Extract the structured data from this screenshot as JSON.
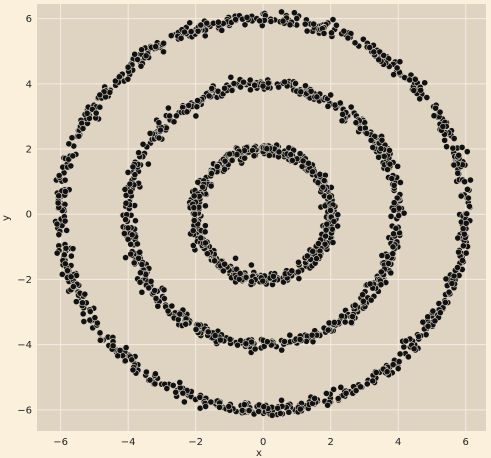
{
  "chart_data": {
    "type": "scatter",
    "title": "",
    "xlabel": "x",
    "ylabel": "y",
    "xlim": [
      -6.7,
      6.6
    ],
    "ylim": [
      -6.65,
      6.45
    ],
    "x_ticks": [
      -6,
      -4,
      -2,
      0,
      2,
      4,
      6
    ],
    "y_ticks": [
      -6,
      -4,
      -2,
      0,
      2,
      4,
      6
    ],
    "x_tick_labels": [
      "−6",
      "−4",
      "−2",
      "0",
      "2",
      "4",
      "6"
    ],
    "y_tick_labels": [
      "−6",
      "−4",
      "−2",
      "0",
      "2",
      "4",
      "6"
    ],
    "grid": true,
    "legend": "none",
    "colors": {
      "page_background": "#fbf0dc",
      "plot_background": "#dfd4c2",
      "grid": "#f4ecdf",
      "marker_fill": "#111111",
      "marker_edge": "#d9d0c2",
      "text": "#222222"
    },
    "series": [
      {
        "shape": "circle",
        "center": [
          0,
          0
        ],
        "radius": 2.0,
        "noise": 0.2,
        "n_points": 500
      },
      {
        "shape": "circle",
        "center": [
          0,
          0
        ],
        "radius": 4.0,
        "noise": 0.2,
        "n_points": 650
      },
      {
        "shape": "circle",
        "center": [
          0,
          0
        ],
        "radius": 6.0,
        "noise": 0.2,
        "n_points": 800
      }
    ]
  }
}
